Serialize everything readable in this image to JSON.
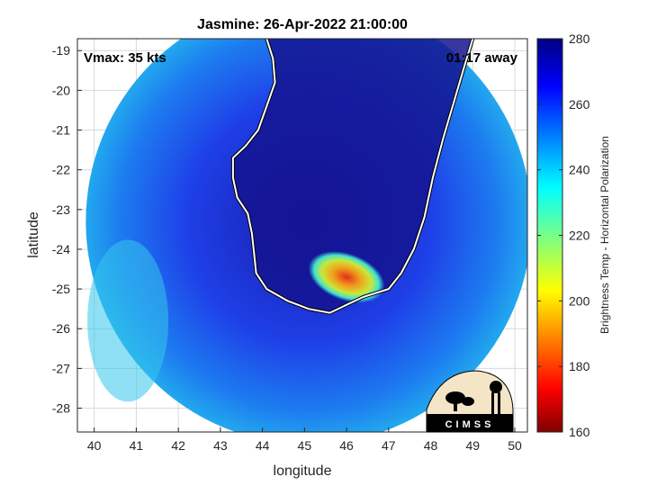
{
  "chart_data": {
    "type": "heatmap",
    "title": "Jasmine: 26-Apr-2022 21:00:00",
    "xlabel": "longitude",
    "ylabel": "latitude",
    "x_ticks": [
      40,
      41,
      42,
      43,
      44,
      45,
      46,
      47,
      48,
      49,
      50
    ],
    "y_ticks": [
      -19,
      -20,
      -21,
      -22,
      -23,
      -24,
      -25,
      -26,
      -27,
      -28
    ],
    "xlim": [
      39.6,
      50.3
    ],
    "ylim": [
      -28.6,
      -18.7
    ],
    "grid": true,
    "colorbar": {
      "label": "Brightness Temp - Horizontal Polarization",
      "ticks": [
        280,
        260,
        240,
        220,
        200,
        180,
        160
      ],
      "range": [
        160,
        280
      ],
      "colormap": "jet"
    },
    "annotations": {
      "vmax": "Vmax: 35 kts",
      "away": "01:17 away"
    },
    "swath_center": [
      45.1,
      -23.3
    ],
    "swath_radius_deg": 5.3,
    "coastline": [
      [
        44.1,
        -18.7
      ],
      [
        44.25,
        -19.2
      ],
      [
        44.3,
        -19.8
      ],
      [
        44.1,
        -20.4
      ],
      [
        43.9,
        -21.0
      ],
      [
        43.6,
        -21.4
      ],
      [
        43.3,
        -21.7
      ],
      [
        43.3,
        -22.2
      ],
      [
        43.4,
        -22.7
      ],
      [
        43.65,
        -23.1
      ],
      [
        43.75,
        -23.6
      ],
      [
        43.8,
        -24.1
      ],
      [
        43.85,
        -24.6
      ],
      [
        44.1,
        -25.0
      ],
      [
        44.6,
        -25.3
      ],
      [
        45.1,
        -25.5
      ],
      [
        45.6,
        -25.6
      ],
      [
        46.0,
        -25.4
      ],
      [
        46.4,
        -25.2
      ],
      [
        47.0,
        -25.0
      ],
      [
        47.3,
        -24.6
      ],
      [
        47.6,
        -24.0
      ],
      [
        47.85,
        -23.2
      ],
      [
        48.05,
        -22.2
      ],
      [
        48.3,
        -21.2
      ],
      [
        48.55,
        -20.3
      ],
      [
        48.8,
        -19.4
      ],
      [
        49.0,
        -18.7
      ]
    ],
    "logo_text": "CIMSS"
  }
}
